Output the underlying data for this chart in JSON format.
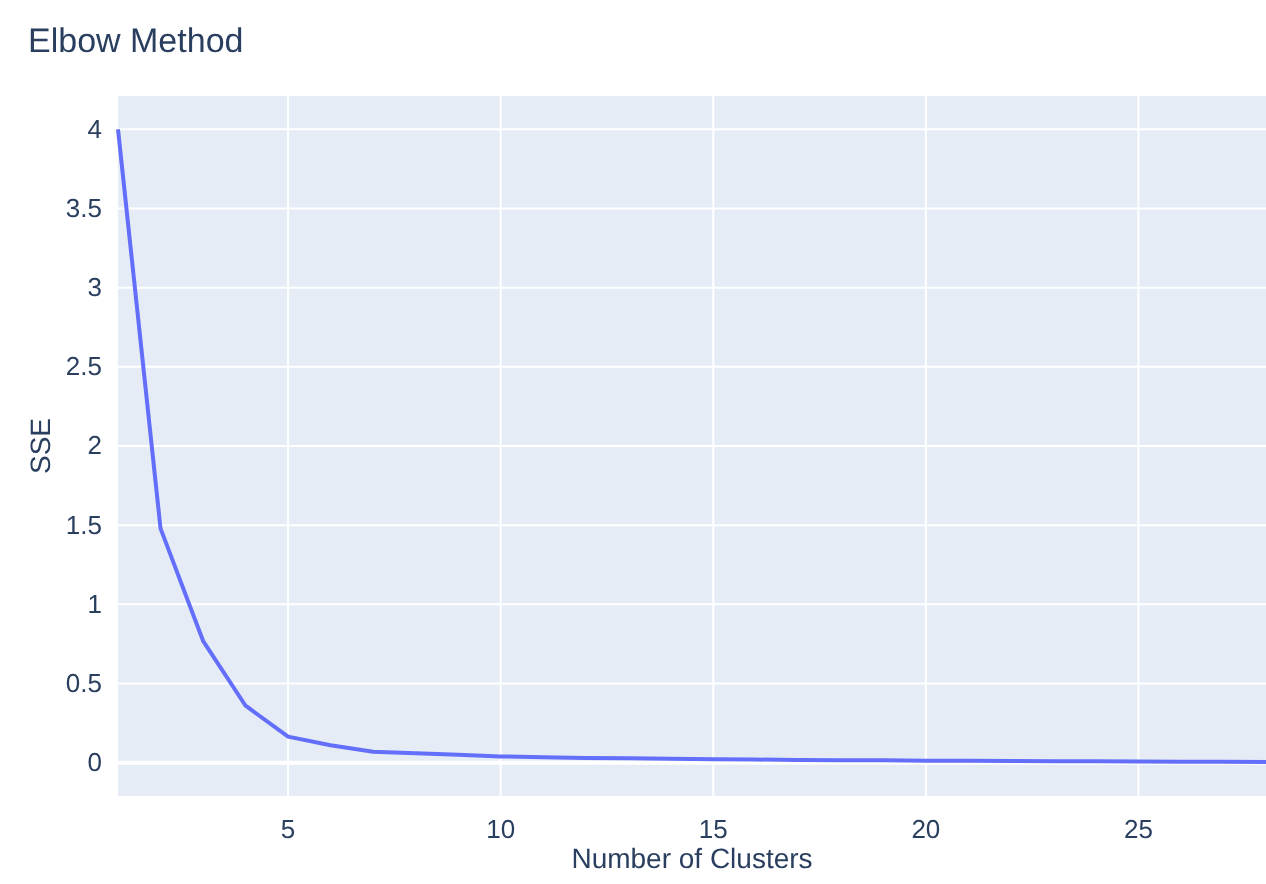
{
  "chart_data": {
    "type": "line",
    "title": "Elbow Method",
    "xlabel": "Number of Clusters",
    "ylabel": "SSE",
    "x": [
      1,
      2,
      3,
      4,
      5,
      6,
      7,
      8,
      9,
      10,
      11,
      12,
      13,
      14,
      15,
      16,
      17,
      18,
      19,
      20,
      21,
      22,
      23,
      24,
      25,
      26,
      27,
      28
    ],
    "series": [
      {
        "color": "#636efa",
        "values": [
          4.0,
          1.48,
          0.77,
          0.36,
          0.165,
          0.11,
          0.07,
          0.06,
          0.05,
          0.04,
          0.035,
          0.03,
          0.028,
          0.025,
          0.022,
          0.02,
          0.018,
          0.016,
          0.015,
          0.013,
          0.012,
          0.011,
          0.01,
          0.009,
          0.008,
          0.007,
          0.006,
          0.005
        ]
      }
    ],
    "xlim": [
      1,
      28
    ],
    "xticks": [
      5,
      10,
      15,
      20,
      25
    ],
    "ylim": [
      -0.21,
      4.21
    ],
    "yticks": [
      0,
      0.5,
      1,
      1.5,
      2,
      2.5,
      3,
      3.5,
      4
    ],
    "grid": true,
    "line_style": "solid",
    "marker": "none"
  }
}
